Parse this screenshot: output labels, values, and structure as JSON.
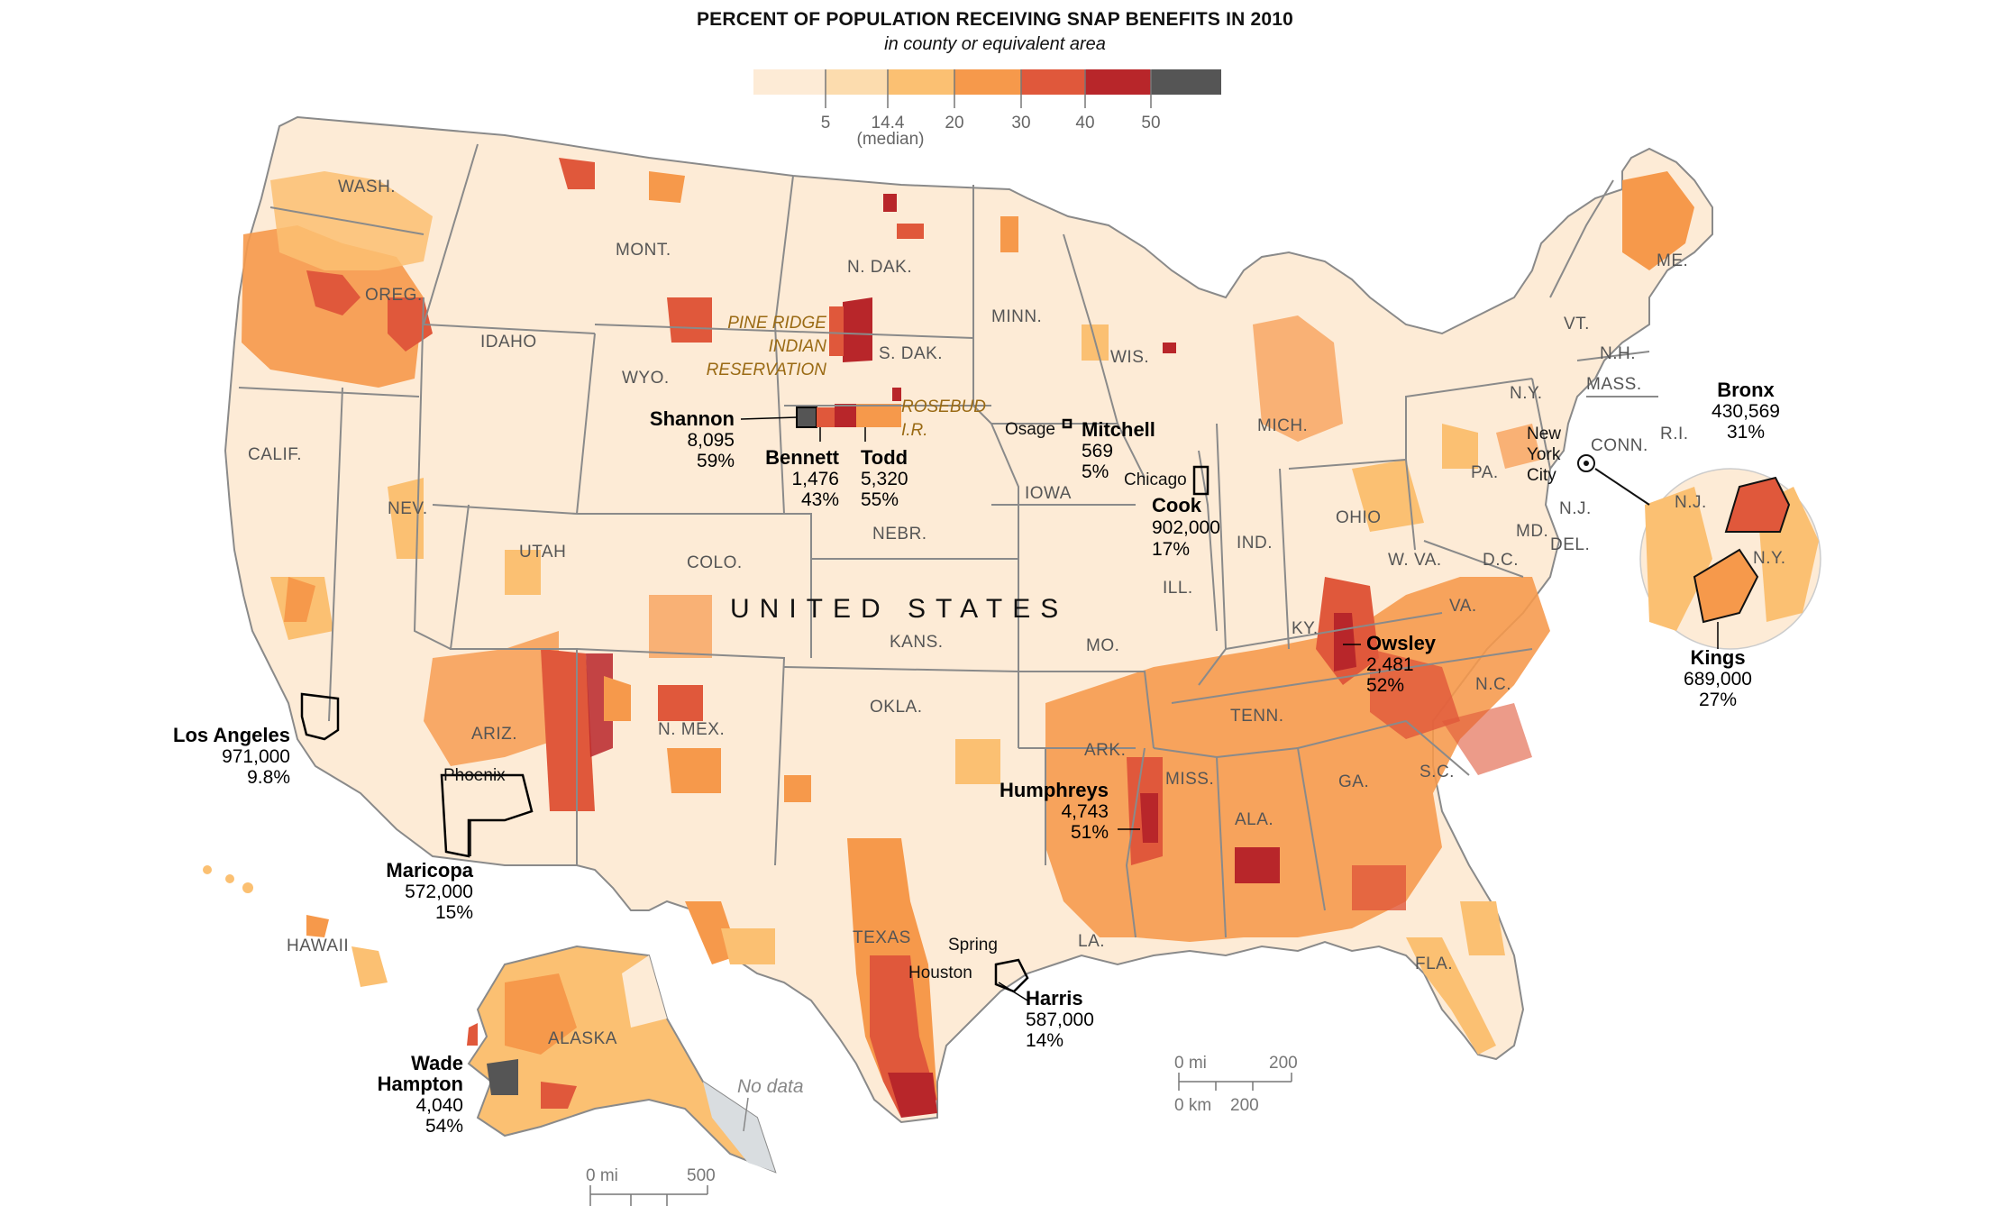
{
  "title": "PERCENT OF POPULATION RECEIVING SNAP BENEFITS IN 2010",
  "subtitle": "in county or equivalent area",
  "colors": {
    "bin1": "#fdebd6",
    "bin2": "#fcdcae",
    "bin3": "#fbc072",
    "bin4": "#f6994b",
    "bin5": "#e0583b",
    "bin6": "#b8262a",
    "bin7": "#555555",
    "border": "#8a8a8a",
    "nodata": "#d9dde0"
  },
  "legend": {
    "ticks": [
      {
        "label": "5",
        "value": 5
      },
      {
        "label": "14.4",
        "value": 14.4,
        "note": "(median)"
      },
      {
        "label": "20",
        "value": 20
      },
      {
        "label": "30",
        "value": 30
      },
      {
        "label": "40",
        "value": 40
      },
      {
        "label": "50",
        "value": 50
      }
    ]
  },
  "country_label": "UNITED STATES",
  "states": [
    "WASH.",
    "OREG.",
    "CALIF.",
    "IDAHO",
    "NEV.",
    "MONT.",
    "WYO.",
    "UTAH",
    "ARIZ.",
    "COLO.",
    "N. MEX.",
    "N. DAK.",
    "S. DAK.",
    "NEBR.",
    "KANS.",
    "OKLA.",
    "TEXAS",
    "MINN.",
    "IOWA",
    "MO.",
    "ARK.",
    "LA.",
    "WIS.",
    "ILL.",
    "MICH.",
    "IND.",
    "OHIO",
    "KY.",
    "TENN.",
    "MISS.",
    "ALA.",
    "GA.",
    "FLA.",
    "S.C.",
    "N.C.",
    "VA.",
    "W. VA.",
    "PA.",
    "N.Y.",
    "VT.",
    "N.H.",
    "ME.",
    "MASS.",
    "CONN.",
    "R.I.",
    "N.J.",
    "DEL.",
    "MD.",
    "D.C.",
    "ALASKA",
    "HAWAII"
  ],
  "reservations": {
    "pine_ridge": [
      "PINE RIDGE",
      "INDIAN",
      "RESERVATION"
    ],
    "rosebud": [
      "ROSEBUD",
      "I.R."
    ]
  },
  "cities": [
    "Osage",
    "Chicago",
    "Phoenix",
    "Spring",
    "Houston",
    "New",
    "York",
    "City"
  ],
  "callouts": {
    "shannon": {
      "name": "Shannon",
      "pop": "8,095",
      "pct": "59%"
    },
    "bennett": {
      "name": "Bennett",
      "pop": "1,476",
      "pct": "43%"
    },
    "todd": {
      "name": "Todd",
      "pop": "5,320",
      "pct": "55%"
    },
    "mitchell": {
      "name": "Mitchell",
      "pop": "569",
      "pct": "5%"
    },
    "cook": {
      "name": "Cook",
      "pop": "902,000",
      "pct": "17%"
    },
    "owsley": {
      "name": "Owsley",
      "pop": "2,481",
      "pct": "52%"
    },
    "humphreys": {
      "name": "Humphreys",
      "pop": "4,743",
      "pct": "51%"
    },
    "los_angeles": {
      "name": "Los Angeles",
      "pop": "971,000",
      "pct": "9.8%"
    },
    "maricopa": {
      "name": "Maricopa",
      "pop": "572,000",
      "pct": "15%"
    },
    "harris": {
      "name": "Harris",
      "pop": "587,000",
      "pct": "14%"
    },
    "wade_hampton": {
      "name": [
        "Wade",
        "Hampton"
      ],
      "pop": "4,040",
      "pct": "54%"
    },
    "bronx": {
      "name": "Bronx",
      "pop": "430,569",
      "pct": "31%"
    },
    "kings": {
      "name": "Kings",
      "pop": "689,000",
      "pct": "27%"
    }
  },
  "no_data_label": "No data",
  "scale_main": {
    "mi_label": "0 mi",
    "mi_max": "200",
    "km_label": "0 km",
    "km_max": "200"
  },
  "scale_alaska": {
    "mi_label": "0 mi",
    "mi_max": "500"
  }
}
